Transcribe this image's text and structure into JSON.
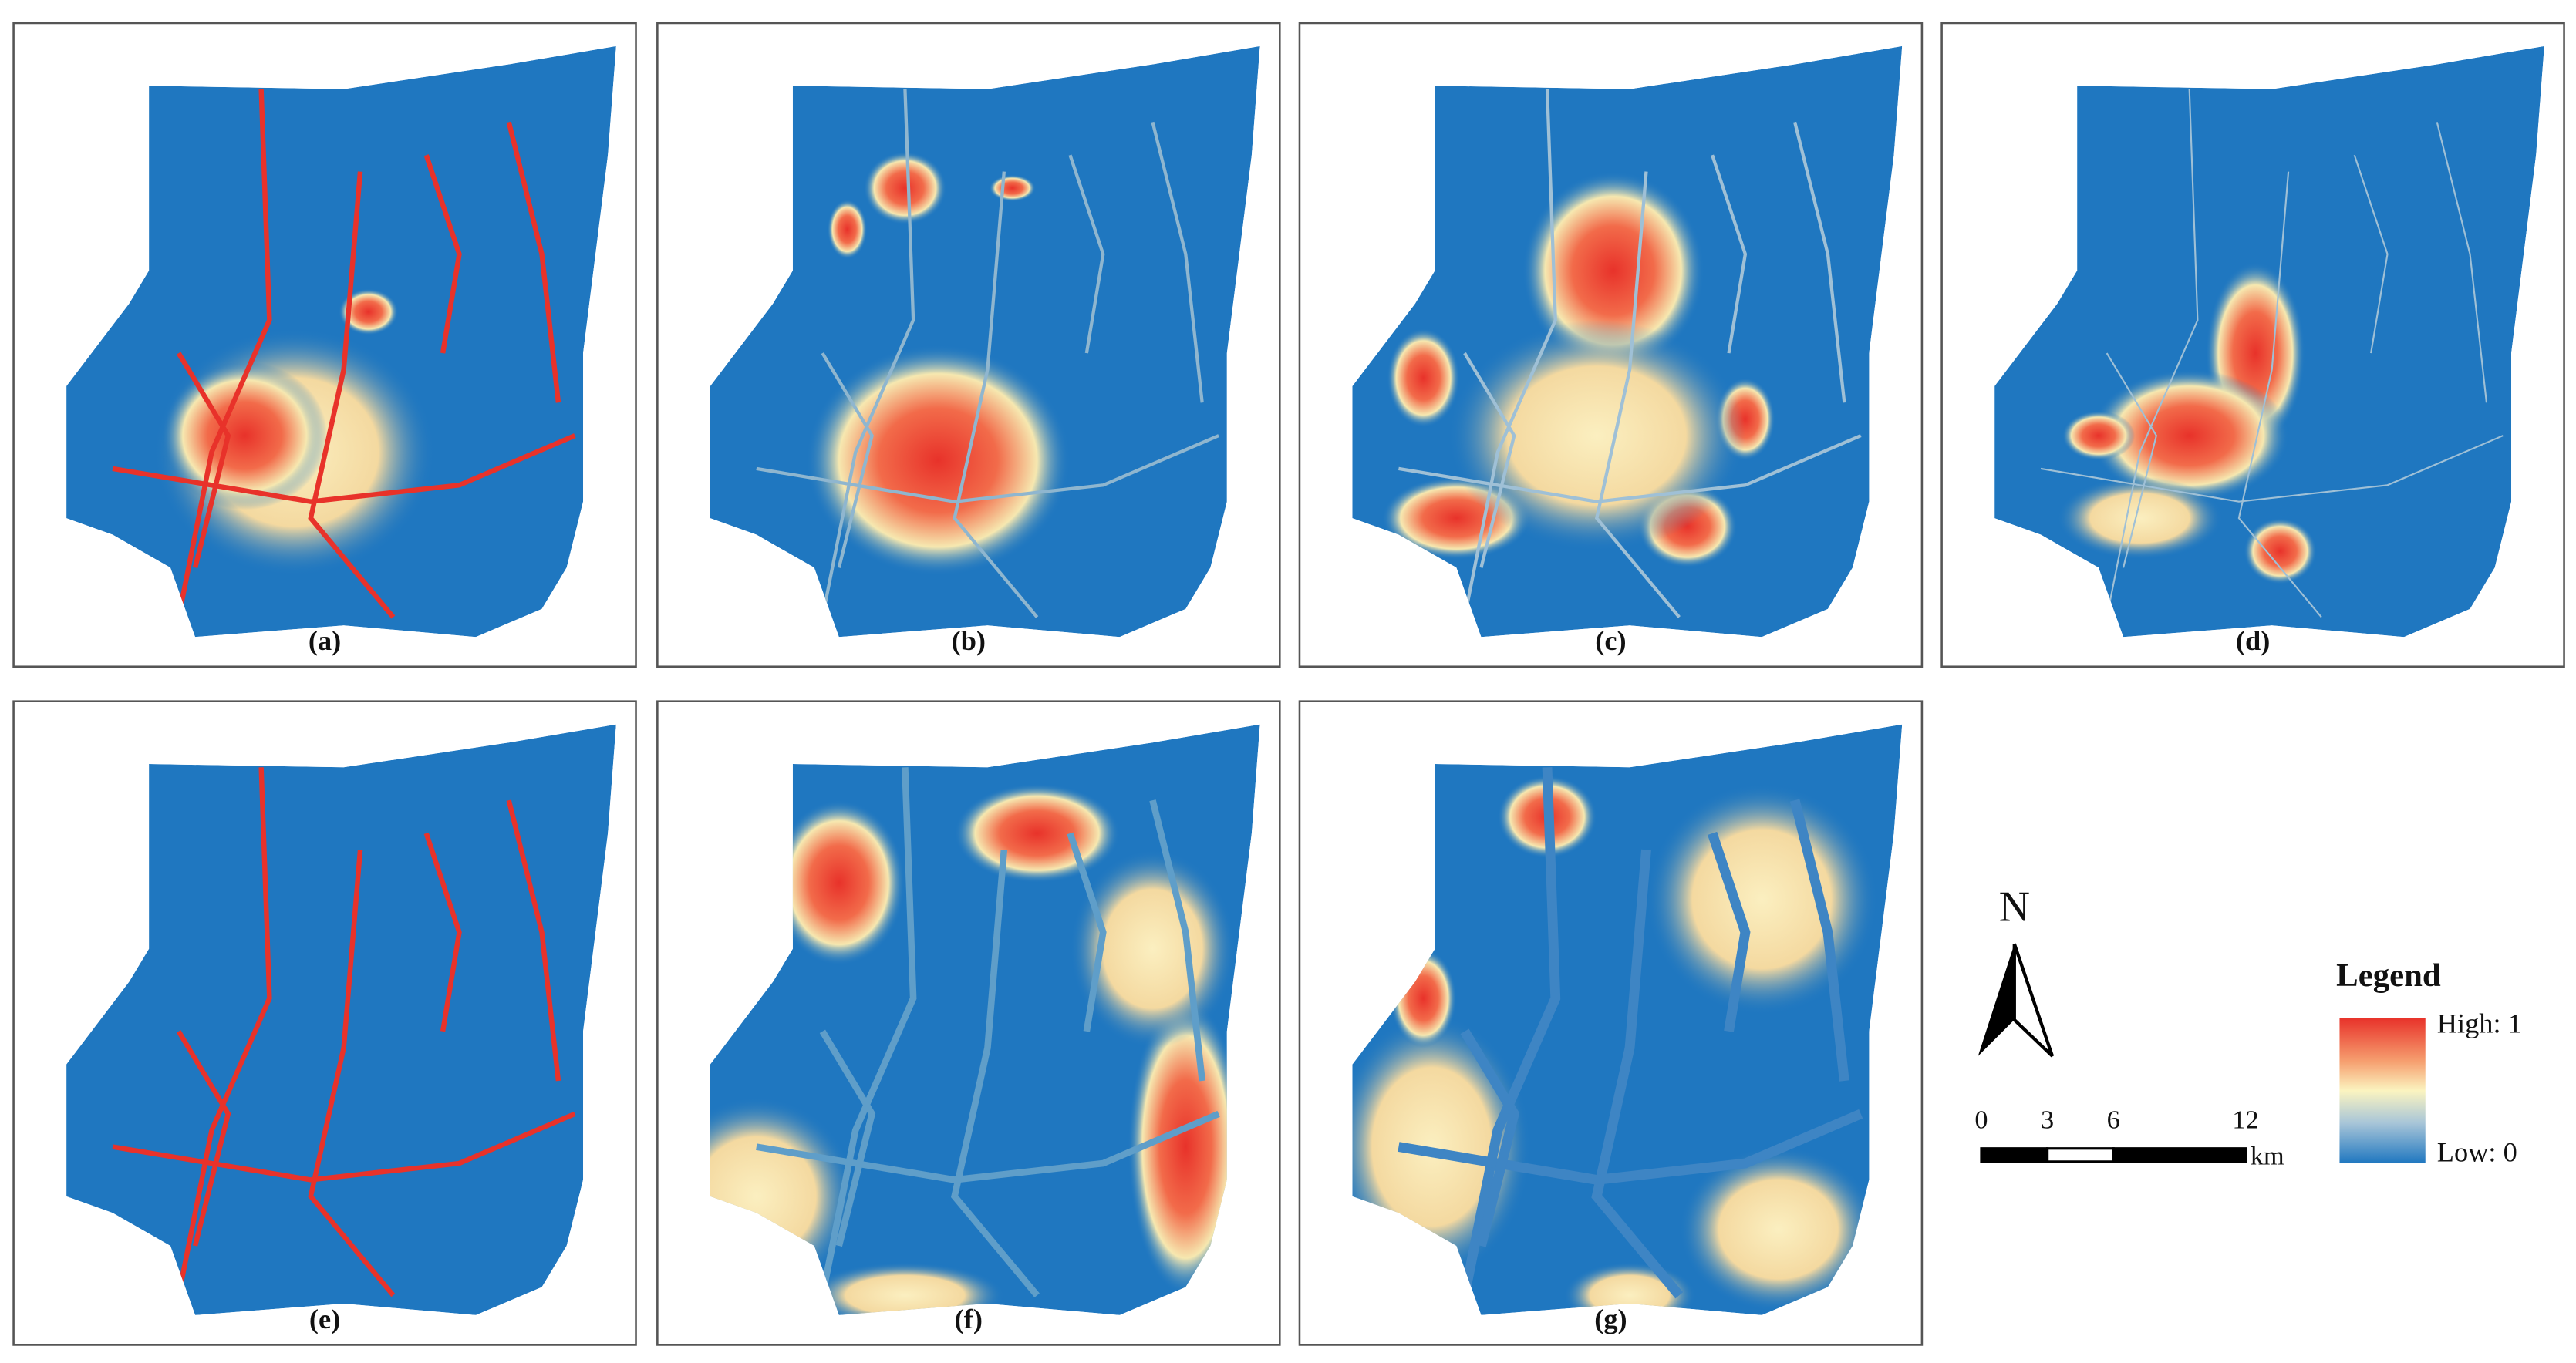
{
  "panels": [
    {
      "label": "(a)"
    },
    {
      "label": "(b)"
    },
    {
      "label": "(c)"
    },
    {
      "label": "(d)"
    },
    {
      "label": "(e)"
    },
    {
      "label": "(f)"
    },
    {
      "label": "(g)"
    }
  ],
  "north_arrow": {
    "label": "N"
  },
  "scale_bar": {
    "ticks": [
      0,
      3,
      6,
      12
    ],
    "unit": "km"
  },
  "legend": {
    "title": "Legend",
    "high": "High: 1",
    "low": "Low: 0"
  }
}
